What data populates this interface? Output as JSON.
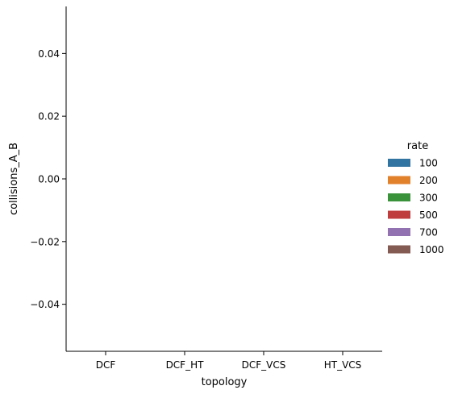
{
  "chart_data": {
    "type": "bar",
    "xlabel": "topology",
    "ylabel": "collisions_A_B",
    "categories": [
      "DCF",
      "DCF_HT",
      "DCF_VCS",
      "HT_VCS"
    ],
    "ylim": [
      -0.055,
      0.055
    ],
    "yticks": [
      {
        "value": 0.04,
        "label": "0.04"
      },
      {
        "value": 0.02,
        "label": "0.02"
      },
      {
        "value": 0.0,
        "label": "0.00"
      },
      {
        "value": -0.02,
        "label": "−0.02"
      },
      {
        "value": -0.04,
        "label": "−0.04"
      }
    ],
    "legend_title": "rate",
    "legend_placement": "right",
    "grid": false,
    "series": [
      {
        "name": "100",
        "color": "#3274a1",
        "values": [
          0,
          0,
          0,
          0
        ]
      },
      {
        "name": "200",
        "color": "#e1812c",
        "values": [
          0,
          0,
          0,
          0
        ]
      },
      {
        "name": "300",
        "color": "#3a923a",
        "values": [
          0,
          0,
          0,
          0
        ]
      },
      {
        "name": "500",
        "color": "#c03d3e",
        "values": [
          0,
          0,
          0,
          0
        ]
      },
      {
        "name": "700",
        "color": "#9372b2",
        "values": [
          0,
          0,
          0,
          0
        ]
      },
      {
        "name": "1000",
        "color": "#845b53",
        "values": [
          0,
          0,
          0,
          0
        ]
      }
    ]
  }
}
